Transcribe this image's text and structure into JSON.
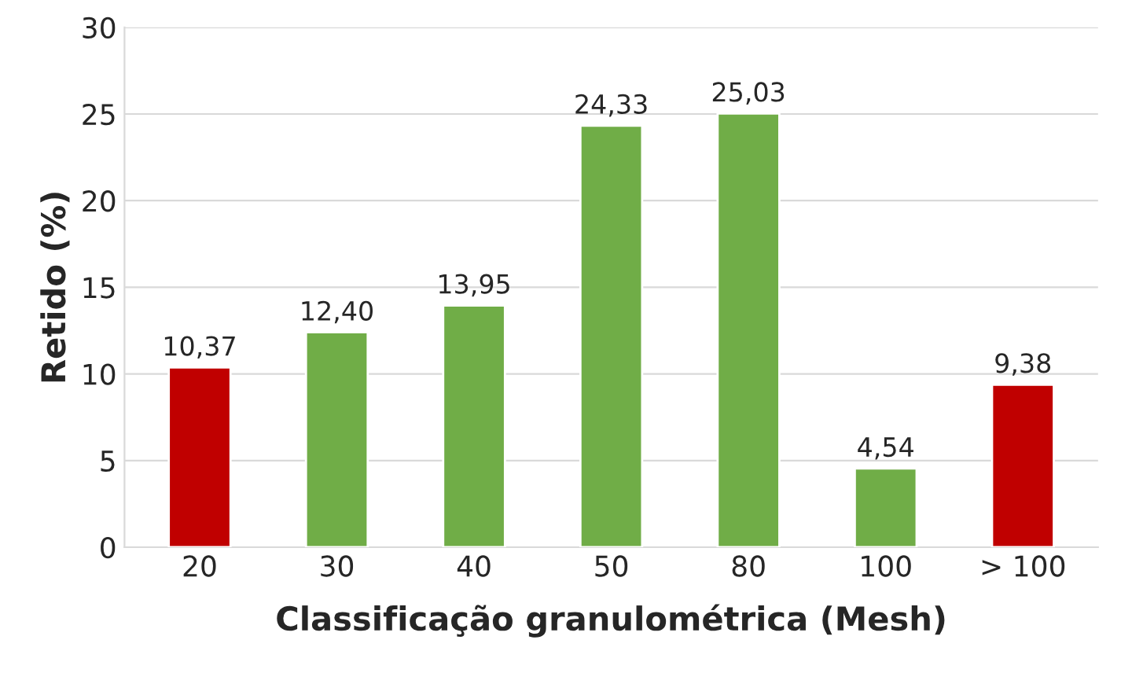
{
  "chart_data": {
    "type": "bar",
    "xlabel": "Classificação granulométrica (Mesh)",
    "ylabel": "Retido (%)",
    "categories": [
      "20",
      "30",
      "40",
      "50",
      "80",
      "100",
      "> 100"
    ],
    "values": [
      10.37,
      12.4,
      13.95,
      24.33,
      25.03,
      4.54,
      9.38
    ],
    "colors": [
      "#c00000",
      "#70ad47",
      "#70ad47",
      "#70ad47",
      "#70ad47",
      "#70ad47",
      "#c00000"
    ],
    "value_labels": [
      "10,37",
      "12,40",
      "13,95",
      "24,33",
      "25,03",
      "4,54",
      "9,38"
    ],
    "ylim": [
      0,
      30
    ],
    "yticks": [
      0,
      5,
      10,
      15,
      20,
      25,
      30
    ],
    "grid": "y",
    "legend": false
  }
}
